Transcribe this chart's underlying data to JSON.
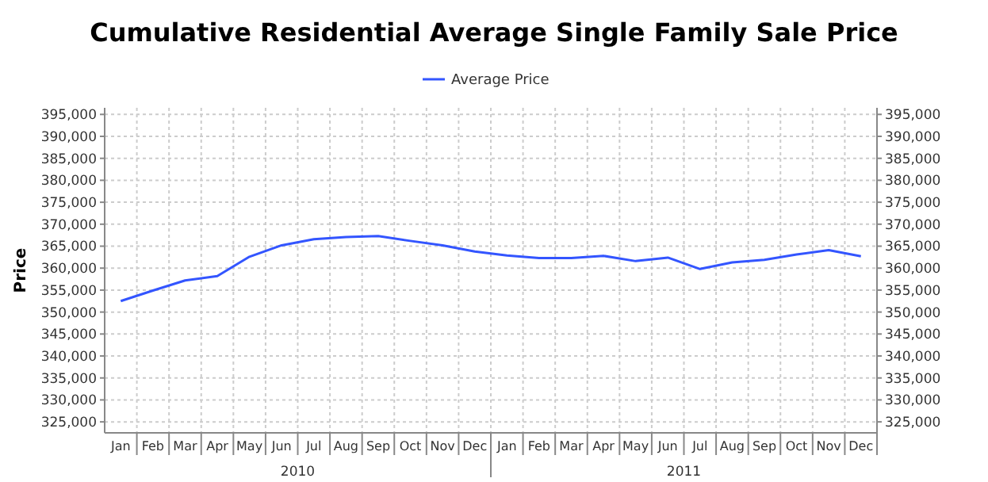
{
  "chart_data": {
    "type": "line",
    "title": "Cumulative Residential Average Single Family Sale Price",
    "ylabel": "Price",
    "categories": [
      "Jan",
      "Feb",
      "Mar",
      "Apr",
      "May",
      "Jun",
      "Jul",
      "Aug",
      "Sep",
      "Oct",
      "Nov",
      "Dec",
      "Jan",
      "Feb",
      "Mar",
      "Apr",
      "May",
      "Jun",
      "Jul",
      "Aug",
      "Sep",
      "Oct",
      "Nov",
      "Dec"
    ],
    "annotations": [
      "2010",
      "2011"
    ],
    "series": [
      {
        "name": "Average Price",
        "color": "#3355ff",
        "values": [
          352500,
          354900,
          357200,
          358200,
          362600,
          365200,
          366600,
          367100,
          367300,
          366200,
          365200,
          363800,
          362900,
          362300,
          362300,
          362800,
          361600,
          362400,
          359800,
          361300,
          361900,
          363100,
          364100,
          362700
        ]
      }
    ],
    "ylim": [
      322500,
      396500
    ],
    "yticks": [
      {
        "value": 325000,
        "label": "325,000"
      },
      {
        "value": 330000,
        "label": "330,000"
      },
      {
        "value": 335000,
        "label": "335,000"
      },
      {
        "value": 340000,
        "label": "340,000"
      },
      {
        "value": 345000,
        "label": "345,000"
      },
      {
        "value": 350000,
        "label": "350,000"
      },
      {
        "value": 355000,
        "label": "355,000"
      },
      {
        "value": 360000,
        "label": "360,000"
      },
      {
        "value": 365000,
        "label": "365,000"
      },
      {
        "value": 370000,
        "label": "370,000"
      },
      {
        "value": 375000,
        "label": "375,000"
      },
      {
        "value": 380000,
        "label": "380,000"
      },
      {
        "value": 385000,
        "label": "385,000"
      },
      {
        "value": 390000,
        "label": "390,000"
      },
      {
        "value": 395000,
        "label": "395,000"
      }
    ],
    "y2lim": [
      322500,
      396500
    ],
    "y2ticks": [
      {
        "value": 325000,
        "label": "325,000"
      },
      {
        "value": 330000,
        "label": "330,000"
      },
      {
        "value": 335000,
        "label": "335,000"
      },
      {
        "value": 340000,
        "label": "340,000"
      },
      {
        "value": 345000,
        "label": "345,000"
      },
      {
        "value": 350000,
        "label": "350,000"
      },
      {
        "value": 355000,
        "label": "355,000"
      },
      {
        "value": 360000,
        "label": "360,000"
      },
      {
        "value": 365000,
        "label": "365,000"
      },
      {
        "value": 370000,
        "label": "370,000"
      },
      {
        "value": 375000,
        "label": "375,000"
      },
      {
        "value": 380000,
        "label": "380,000"
      },
      {
        "value": 385000,
        "label": "385,000"
      },
      {
        "value": 390000,
        "label": "390,000"
      },
      {
        "value": 395000,
        "label": "395,000"
      }
    ],
    "grid": true,
    "legend": "top",
    "marker": "none",
    "line_style": "solid"
  }
}
